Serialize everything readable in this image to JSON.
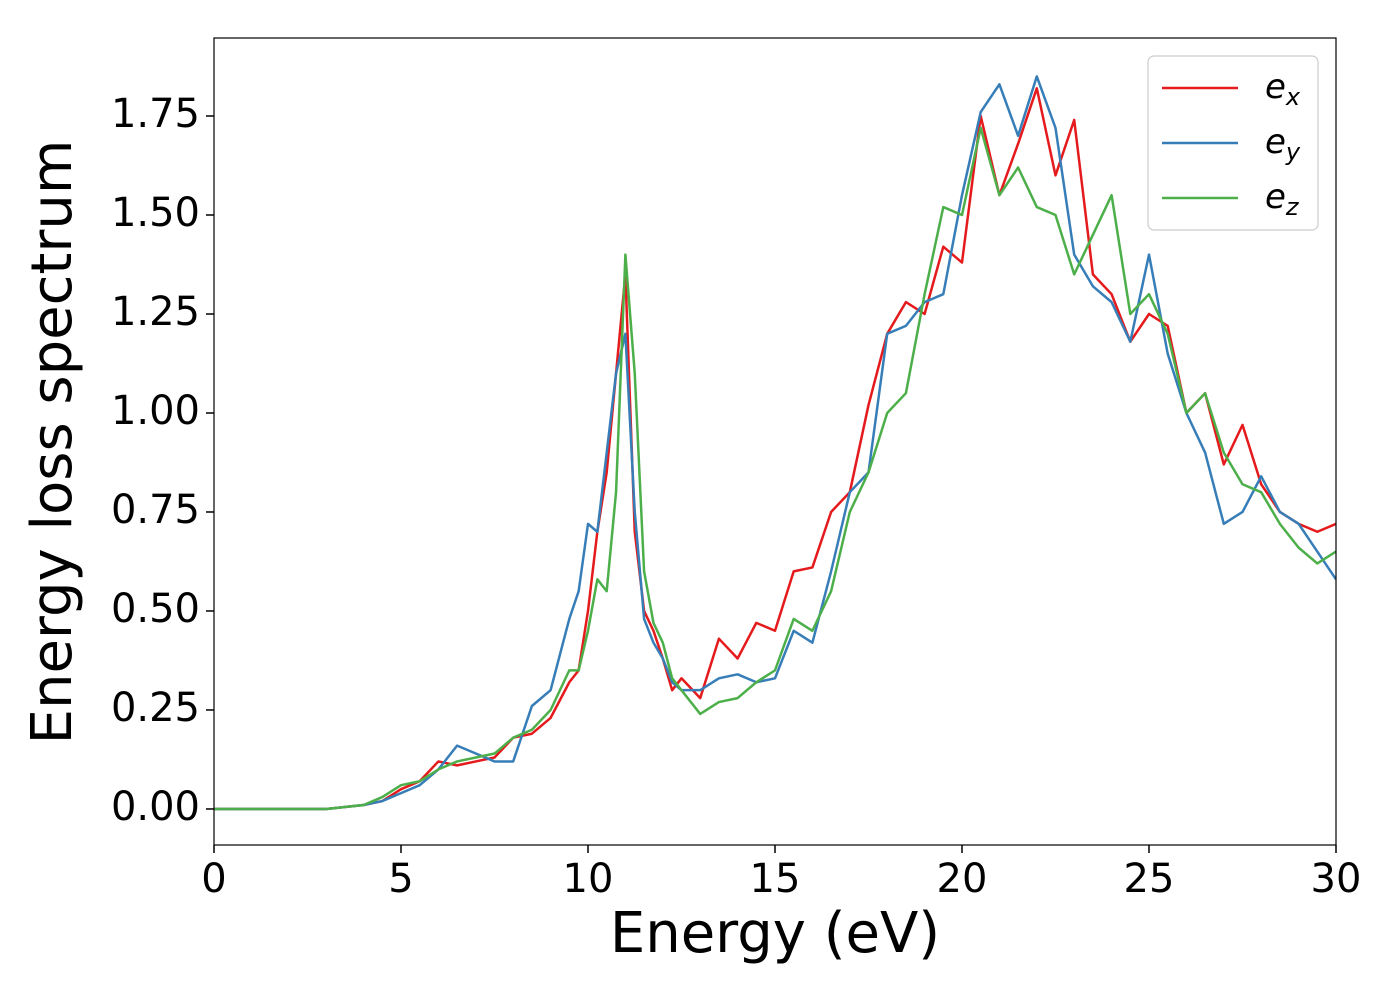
{
  "chart_data": {
    "type": "line",
    "xlabel": "Energy (eV)",
    "ylabel": "Energy loss spectrum",
    "x": [
      0,
      1,
      2,
      3,
      4,
      4.5,
      5,
      5.5,
      6,
      6.5,
      7,
      7.5,
      8,
      8.5,
      9,
      9.5,
      9.75,
      10,
      10.25,
      10.5,
      10.75,
      11,
      11.25,
      11.5,
      11.75,
      12,
      12.25,
      12.5,
      13,
      13.5,
      14,
      14.5,
      15,
      15.5,
      16,
      16.5,
      17,
      17.5,
      18,
      18.5,
      19,
      19.5,
      20,
      20.5,
      21,
      21.5,
      22,
      22.5,
      23,
      23.5,
      24,
      24.5,
      25,
      25.5,
      26,
      26.5,
      27,
      27.5,
      28,
      28.5,
      29,
      29.5,
      30
    ],
    "series": [
      {
        "name": "e_x",
        "color": "#e41a1c",
        "values": [
          0,
          0,
          0,
          0,
          0.01,
          0.02,
          0.05,
          0.07,
          0.12,
          0.11,
          0.12,
          0.13,
          0.18,
          0.19,
          0.23,
          0.32,
          0.35,
          0.5,
          0.7,
          0.85,
          1.1,
          1.35,
          0.7,
          0.5,
          0.45,
          0.38,
          0.3,
          0.33,
          0.28,
          0.43,
          0.38,
          0.47,
          0.45,
          0.6,
          0.61,
          0.75,
          0.8,
          1.02,
          1.2,
          1.28,
          1.25,
          1.42,
          1.38,
          1.75,
          1.55,
          1.68,
          1.82,
          1.6,
          1.74,
          1.35,
          1.3,
          1.18,
          1.25,
          1.22,
          1.0,
          1.05,
          0.87,
          0.97,
          0.82,
          0.75,
          0.72,
          0.7,
          0.72
        ]
      },
      {
        "name": "e_y",
        "color": "#377eb8",
        "values": [
          0,
          0,
          0,
          0,
          0.01,
          0.02,
          0.04,
          0.06,
          0.1,
          0.16,
          0.14,
          0.12,
          0.12,
          0.26,
          0.3,
          0.48,
          0.55,
          0.72,
          0.7,
          0.9,
          1.1,
          1.2,
          0.75,
          0.48,
          0.42,
          0.38,
          0.32,
          0.3,
          0.3,
          0.33,
          0.34,
          0.32,
          0.33,
          0.45,
          0.42,
          0.6,
          0.8,
          0.85,
          1.2,
          1.22,
          1.28,
          1.3,
          1.55,
          1.76,
          1.83,
          1.7,
          1.85,
          1.72,
          1.4,
          1.32,
          1.28,
          1.18,
          1.4,
          1.15,
          1.0,
          0.9,
          0.72,
          0.75,
          0.84,
          0.75,
          0.72,
          0.65,
          0.58
        ]
      },
      {
        "name": "e_z",
        "color": "#4daf4a",
        "values": [
          0,
          0,
          0,
          0,
          0.01,
          0.03,
          0.06,
          0.07,
          0.1,
          0.12,
          0.13,
          0.14,
          0.18,
          0.2,
          0.25,
          0.35,
          0.35,
          0.45,
          0.58,
          0.55,
          0.8,
          1.4,
          1.1,
          0.6,
          0.47,
          0.42,
          0.33,
          0.3,
          0.24,
          0.27,
          0.28,
          0.32,
          0.35,
          0.48,
          0.45,
          0.55,
          0.75,
          0.85,
          1.0,
          1.05,
          1.3,
          1.52,
          1.5,
          1.72,
          1.55,
          1.62,
          1.52,
          1.5,
          1.35,
          1.45,
          1.55,
          1.25,
          1.3,
          1.2,
          1.0,
          1.05,
          0.9,
          0.82,
          0.8,
          0.72,
          0.66,
          0.62,
          0.65
        ]
      }
    ],
    "xlim": [
      0,
      30
    ],
    "xticks": [
      0,
      5,
      10,
      15,
      20,
      25,
      30
    ],
    "ylim": [
      -0.091,
      1.947
    ],
    "yticks": [
      {
        "value": 0,
        "label": "0.00"
      },
      {
        "value": 0.25,
        "label": "0.25"
      },
      {
        "value": 0.5,
        "label": "0.50"
      },
      {
        "value": 0.75,
        "label": "0.75"
      },
      {
        "value": 1,
        "label": "1.00"
      },
      {
        "value": 1.25,
        "label": "1.25"
      },
      {
        "value": 1.5,
        "label": "1.50"
      },
      {
        "value": 1.75,
        "label": "1.75"
      }
    ],
    "legend": "upper right"
  }
}
